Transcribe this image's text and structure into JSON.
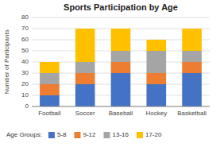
{
  "chart_data": {
    "type": "bar",
    "stacked": true,
    "title": "Sports Participation by Age",
    "ylabel": "Number of Participants",
    "categories": [
      "Football",
      "Soccer",
      "Baseball",
      "Hockey",
      "Basketball"
    ],
    "series": [
      {
        "name": "5-8",
        "color": "#4472C4",
        "values": [
          10,
          20,
          30,
          20,
          30
        ]
      },
      {
        "name": "9-12",
        "color": "#ED7D31",
        "values": [
          10,
          10,
          10,
          10,
          10
        ]
      },
      {
        "name": "13-16",
        "color": "#A5A5A5",
        "values": [
          10,
          10,
          10,
          20,
          10
        ]
      },
      {
        "name": "17-20",
        "color": "#FFC000",
        "values": [
          10,
          30,
          20,
          10,
          20
        ]
      }
    ],
    "ylim": [
      0,
      80
    ],
    "yticks": [
      0,
      10,
      20,
      30,
      40,
      50,
      60,
      70,
      80
    ],
    "grid": true,
    "legend": "bottom",
    "legend_title": "Age Groups:"
  }
}
